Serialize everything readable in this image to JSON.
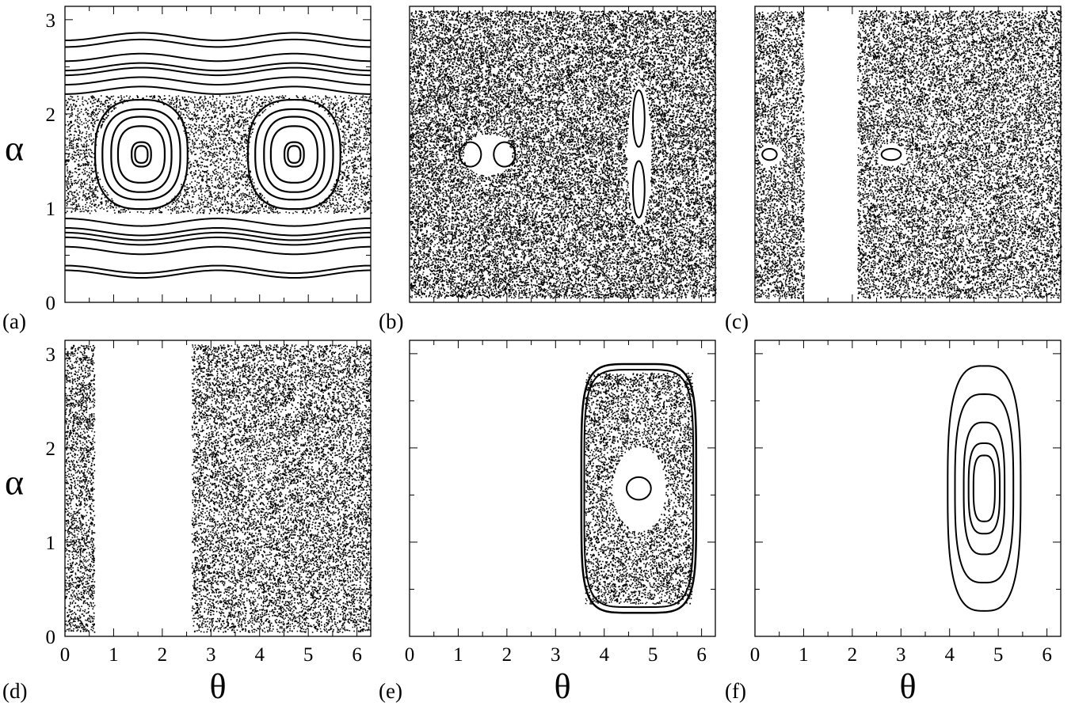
{
  "chart_data": [
    {
      "panel": "(a)",
      "type": "scatter",
      "xlabel": "",
      "ylabel": "α",
      "xlim": [
        0,
        6.2832
      ],
      "ylim": [
        0,
        3.1416
      ],
      "xticks": [],
      "yticks": [
        "0",
        "1",
        "2",
        "3"
      ],
      "description_of_marks": "regular phase-space orbits: horizontal invariant curves near α≈0.3,0.6,0.7,2.3,2.5,2.8 and two resonance islands centered at (1.57,1.57) and (4.71,1.57) within a chaotic band",
      "islands": [
        {
          "center": [
            1.57,
            1.57
          ]
        },
        {
          "center": [
            4.71,
            1.57
          ]
        }
      ],
      "invariant_curves_alpha": [
        0.3,
        0.35,
        0.55,
        0.65,
        0.7,
        0.75,
        0.85,
        2.25,
        2.35,
        2.45,
        2.5,
        2.6,
        2.75,
        2.82
      ]
    },
    {
      "panel": "(b)",
      "type": "scatter",
      "xlabel": "",
      "ylabel": "",
      "xlim": [
        0,
        6.2832
      ],
      "ylim": [
        0,
        3.1416
      ],
      "xticks": [],
      "yticks": [],
      "description_of_marks": "fully chaotic sea with small regular islands near (1.6,1.57) horizontal figure-eight and (4.71,1.57) vertical figure-eight",
      "islands": [
        {
          "center": [
            1.6,
            1.57
          ]
        },
        {
          "center": [
            4.71,
            1.57
          ]
        }
      ]
    },
    {
      "panel": "(c)",
      "type": "scatter",
      "xlabel": "",
      "ylabel": "",
      "xlim": [
        0,
        6.2832
      ],
      "ylim": [
        0,
        3.1416
      ],
      "xticks": [],
      "yticks": [],
      "description_of_marks": "chaotic sea with empty vertical gap roughly θ∈[1.0,2.1]; small islands near (0.3,1.57) and (2.8,1.57)",
      "empty_theta_range": [
        1.0,
        2.1
      ]
    },
    {
      "panel": "(d)",
      "type": "scatter",
      "xlabel": "θ",
      "ylabel": "α",
      "xlim": [
        0,
        6.2832
      ],
      "ylim": [
        0,
        3.1416
      ],
      "xticks": [
        "0",
        "1",
        "2",
        "3",
        "4",
        "5",
        "6"
      ],
      "yticks": [
        "0",
        "1",
        "2",
        "3"
      ],
      "description_of_marks": "chaotic points with empty vertical gap roughly θ∈[0.6,2.6]",
      "empty_theta_range": [
        0.6,
        2.6
      ]
    },
    {
      "panel": "(e)",
      "type": "scatter",
      "xlabel": "θ",
      "ylabel": "",
      "xlim": [
        0,
        6.2832
      ],
      "ylim": [
        0,
        3.1416
      ],
      "xticks": [
        "0",
        "1",
        "2",
        "3",
        "4",
        "5",
        "6"
      ],
      "yticks": [],
      "description_of_marks": "bounded region θ∈[3.5,5.9], α∈[0.25,2.9] with chaotic layer and central regular island at (4.71,1.57)",
      "region_theta": [
        3.5,
        5.9
      ],
      "region_alpha": [
        0.25,
        2.9
      ]
    },
    {
      "panel": "(f)",
      "type": "scatter",
      "xlabel": "θ",
      "ylabel": "",
      "xlim": [
        0,
        6.2832
      ],
      "ylim": [
        0,
        3.1416
      ],
      "xticks": [
        "0",
        "1",
        "2",
        "3",
        "4",
        "5",
        "6"
      ],
      "yticks": [],
      "description_of_marks": "nested regular closed orbits centered at (4.71,1.57)",
      "orbits": [
        {
          "center": [
            4.71,
            1.57
          ],
          "half_width": 0.75,
          "half_height": 1.3
        },
        {
          "center": [
            4.71,
            1.57
          ],
          "half_width": 0.6,
          "half_height": 1.0
        },
        {
          "center": [
            4.71,
            1.57
          ],
          "half_width": 0.42,
          "half_height": 0.7
        },
        {
          "center": [
            4.71,
            1.57
          ],
          "half_width": 0.32,
          "half_height": 0.48
        },
        {
          "center": [
            4.71,
            1.57
          ],
          "half_width": 0.22,
          "half_height": 0.35
        }
      ]
    }
  ]
}
